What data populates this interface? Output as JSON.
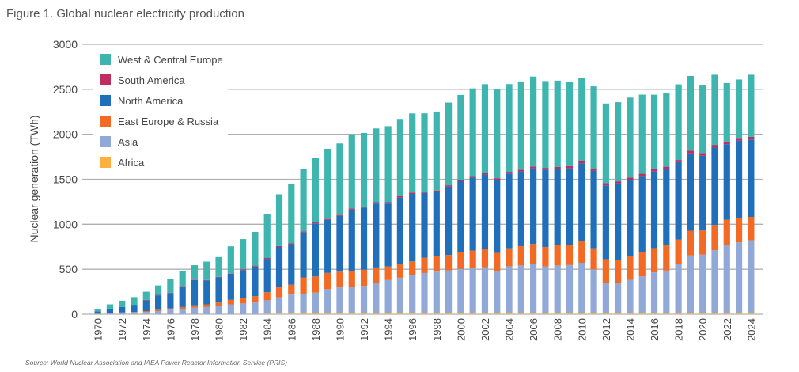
{
  "chart_data": {
    "type": "bar",
    "stacked": true,
    "title": "Figure 1. Global nuclear electricity production",
    "xlabel": "",
    "ylabel": "Nuclear generation (TWh)",
    "ylim": [
      0,
      3000
    ],
    "yticks": [
      "0",
      "500",
      "1000",
      "1500",
      "2000",
      "2500",
      "3000"
    ],
    "grid": true,
    "legend_position": "top-left",
    "source": "Source: World Nuclear Association and IAEA Power Reactor Information Service (PRIS)",
    "categories": [
      "1970",
      "1971",
      "1972",
      "1973",
      "1974",
      "1975",
      "1976",
      "1977",
      "1978",
      "1979",
      "1980",
      "1981",
      "1982",
      "1983",
      "1984",
      "1985",
      "1986",
      "1987",
      "1988",
      "1989",
      "1990",
      "1991",
      "1992",
      "1993",
      "1994",
      "1995",
      "1996",
      "1997",
      "1998",
      "1999",
      "2000",
      "2001",
      "2002",
      "2003",
      "2004",
      "2005",
      "2006",
      "2007",
      "2008",
      "2009",
      "2010",
      "2011",
      "2012",
      "2013",
      "2014",
      "2015",
      "2016",
      "2017",
      "2018",
      "2019",
      "2020",
      "2021",
      "2022",
      "2023",
      "2024"
    ],
    "series": [
      {
        "name": "Africa",
        "color": "#FBB040",
        "values": [
          0,
          0,
          0,
          0,
          0,
          0,
          0,
          0,
          0,
          0,
          0,
          0,
          0,
          0,
          5,
          8,
          8,
          9,
          10,
          9,
          8,
          8,
          10,
          10,
          10,
          11,
          12,
          13,
          13,
          13,
          13,
          12,
          12,
          12,
          13,
          12,
          12,
          12,
          12,
          12,
          12,
          13,
          12,
          12,
          13,
          11,
          15,
          15,
          10,
          13,
          12,
          12,
          10,
          9,
          12
        ]
      },
      {
        "name": "Asia",
        "color": "#91A9D8",
        "values": [
          5,
          10,
          15,
          20,
          25,
          35,
          50,
          60,
          75,
          80,
          90,
          110,
          120,
          130,
          150,
          180,
          210,
          220,
          230,
          270,
          290,
          300,
          305,
          340,
          370,
          395,
          425,
          445,
          460,
          475,
          490,
          500,
          510,
          470,
          520,
          530,
          545,
          520,
          530,
          535,
          560,
          485,
          340,
          340,
          370,
          410,
          450,
          470,
          550,
          640,
          650,
          700,
          760,
          790,
          810
        ]
      },
      {
        "name": "East Europe & Russia",
        "color": "#F26A23",
        "values": [
          2,
          3,
          5,
          5,
          10,
          15,
          15,
          20,
          25,
          30,
          40,
          50,
          60,
          70,
          90,
          110,
          110,
          180,
          180,
          180,
          175,
          175,
          180,
          170,
          150,
          150,
          150,
          170,
          175,
          170,
          185,
          195,
          200,
          200,
          200,
          215,
          225,
          215,
          230,
          225,
          245,
          235,
          260,
          255,
          260,
          265,
          270,
          280,
          270,
          275,
          270,
          280,
          280,
          270,
          260
        ]
      },
      {
        "name": "North America",
        "color": "#1F6FBA",
        "values": [
          25,
          50,
          60,
          80,
          120,
          160,
          170,
          230,
          280,
          265,
          280,
          290,
          310,
          330,
          370,
          450,
          450,
          500,
          590,
          590,
          620,
          680,
          690,
          710,
          700,
          740,
          750,
          720,
          710,
          760,
          790,
          810,
          830,
          810,
          830,
          830,
          840,
          860,
          840,
          850,
          860,
          860,
          820,
          850,
          850,
          850,
          850,
          850,
          860,
          860,
          830,
          860,
          840,
          860,
          860
        ]
      },
      {
        "name": "South America",
        "color": "#BE2F5F",
        "values": [
          0,
          0,
          0,
          0,
          5,
          5,
          5,
          5,
          5,
          5,
          5,
          5,
          10,
          10,
          10,
          10,
          10,
          10,
          10,
          10,
          10,
          12,
          12,
          15,
          15,
          15,
          15,
          15,
          15,
          15,
          15,
          18,
          20,
          20,
          20,
          20,
          20,
          20,
          25,
          25,
          28,
          25,
          25,
          20,
          25,
          25,
          25,
          25,
          25,
          30,
          30,
          30,
          30,
          30,
          30
        ]
      },
      {
        "name": "West & Central Europe",
        "color": "#3EB5AE",
        "values": [
          28,
          47,
          70,
          85,
          90,
          105,
          150,
          160,
          160,
          205,
          220,
          300,
          335,
          375,
          490,
          575,
          660,
          700,
          715,
          780,
          795,
          825,
          818,
          820,
          845,
          860,
          880,
          870,
          880,
          920,
          945,
          975,
          985,
          990,
          975,
          980,
          1000,
          965,
          960,
          940,
          925,
          915,
          885,
          880,
          890,
          880,
          830,
          820,
          840,
          830,
          750,
          780,
          650,
          650,
          690
        ]
      }
    ]
  }
}
